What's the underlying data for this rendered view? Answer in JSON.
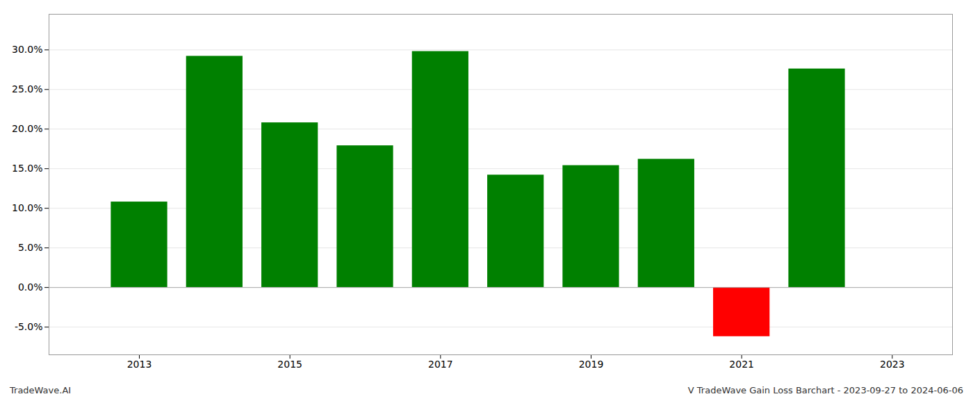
{
  "chart_data": {
    "type": "bar",
    "title": "V TradeWave Gain Loss Barchart - 2023-09-27 to 2024-06-06",
    "annotations": [
      "TradeWave.AI"
    ],
    "x": [
      2013,
      2014,
      2015,
      2016,
      2017,
      2018,
      2019,
      2020,
      2021,
      2022
    ],
    "values": [
      0.108,
      0.292,
      0.208,
      0.179,
      0.298,
      0.142,
      0.154,
      0.162,
      -0.062,
      0.276
    ],
    "colors": [
      "#008000",
      "#008000",
      "#008000",
      "#008000",
      "#008000",
      "#008000",
      "#008000",
      "#008000",
      "#ff0000",
      "#008000"
    ],
    "xlim": [
      2011.8,
      2023.8
    ],
    "xticks": [
      2013,
      2015,
      2017,
      2019,
      2021,
      2023
    ],
    "ylim": [
      -0.085,
      0.345
    ],
    "yticks": [
      {
        "value": -0.05,
        "label": "-5.0%"
      },
      {
        "value": 0.0,
        "label": "0.0%"
      },
      {
        "value": 0.05,
        "label": "5.0%"
      },
      {
        "value": 0.1,
        "label": "10.0%"
      },
      {
        "value": 0.15,
        "label": "15.0%"
      },
      {
        "value": 0.2,
        "label": "20.0%"
      },
      {
        "value": 0.25,
        "label": "25.0%"
      },
      {
        "value": 0.3,
        "label": "30.0%"
      }
    ],
    "grid": true
  }
}
